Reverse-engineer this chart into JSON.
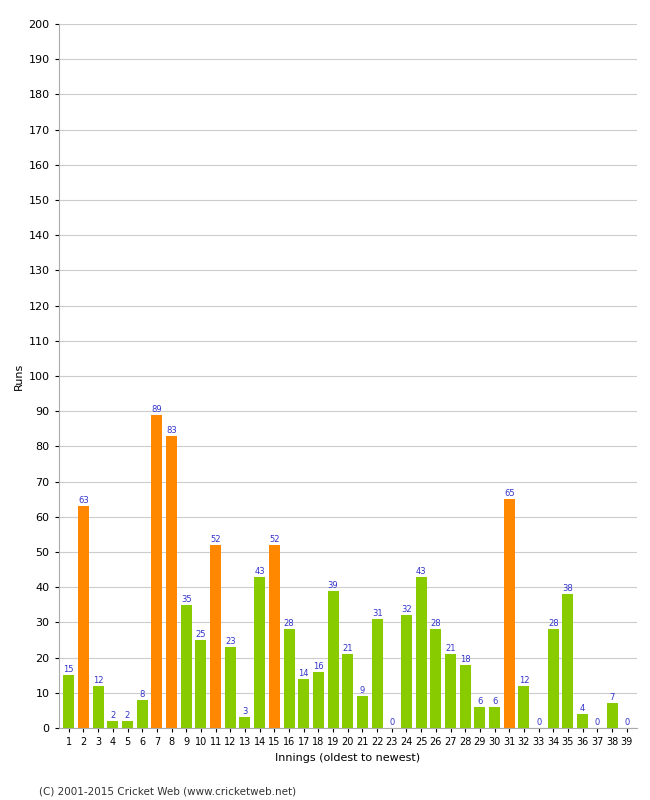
{
  "xlabel": "Innings (oldest to newest)",
  "ylabel": "Runs",
  "ylim": [
    0,
    200
  ],
  "yticks": [
    0,
    10,
    20,
    30,
    40,
    50,
    60,
    70,
    80,
    90,
    100,
    110,
    120,
    130,
    140,
    150,
    160,
    170,
    180,
    190,
    200
  ],
  "innings": [
    1,
    2,
    3,
    4,
    5,
    6,
    7,
    8,
    9,
    10,
    11,
    12,
    13,
    14,
    15,
    16,
    17,
    18,
    19,
    20,
    21,
    22,
    23,
    24,
    25,
    26,
    27,
    28,
    29,
    30,
    31,
    32,
    33,
    34,
    35,
    36,
    37,
    38,
    39
  ],
  "values": [
    15,
    63,
    12,
    2,
    2,
    8,
    89,
    83,
    35,
    25,
    52,
    23,
    3,
    43,
    52,
    28,
    14,
    16,
    39,
    21,
    9,
    31,
    0,
    32,
    43,
    28,
    21,
    18,
    6,
    6,
    65,
    12,
    0,
    28,
    38,
    4,
    0,
    7,
    0
  ],
  "colors": [
    "#88cc00",
    "#ff8800",
    "#88cc00",
    "#88cc00",
    "#88cc00",
    "#88cc00",
    "#ff8800",
    "#ff8800",
    "#88cc00",
    "#88cc00",
    "#ff8800",
    "#88cc00",
    "#88cc00",
    "#88cc00",
    "#ff8800",
    "#88cc00",
    "#88cc00",
    "#88cc00",
    "#88cc00",
    "#88cc00",
    "#88cc00",
    "#88cc00",
    "#88cc00",
    "#88cc00",
    "#88cc00",
    "#88cc00",
    "#88cc00",
    "#88cc00",
    "#88cc00",
    "#88cc00",
    "#ff8800",
    "#88cc00",
    "#88cc00",
    "#88cc00",
    "#88cc00",
    "#88cc00",
    "#88cc00",
    "#88cc00",
    "#88cc00"
  ],
  "label_color": "#3333cc",
  "background_color": "#ffffff",
  "grid_color": "#cccccc",
  "footer": "(C) 2001-2015 Cricket Web (www.cricketweb.net)",
  "bar_width": 0.75
}
